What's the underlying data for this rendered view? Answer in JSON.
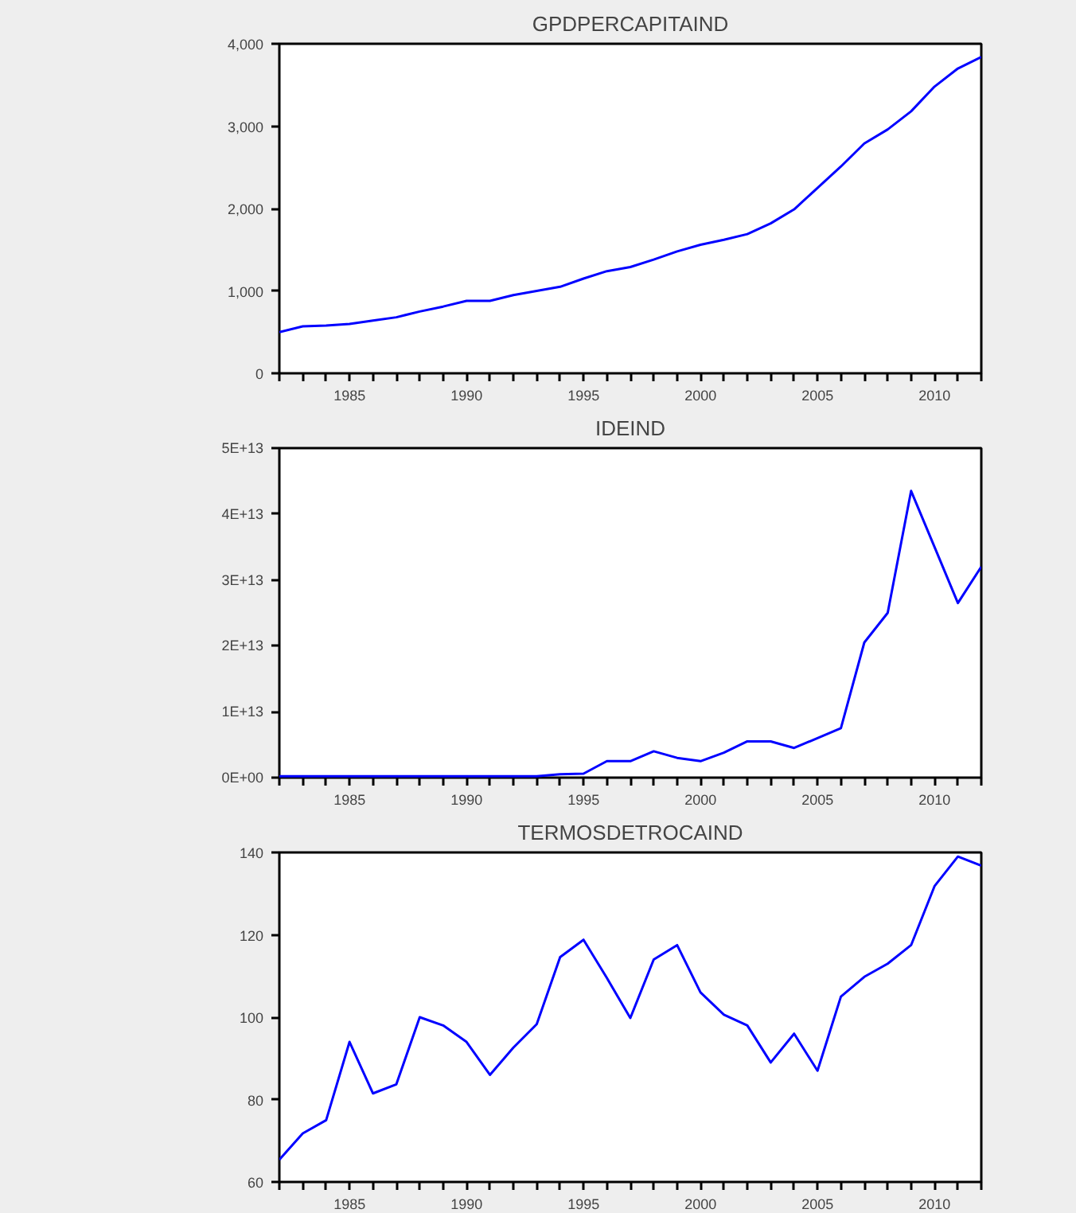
{
  "chart_data": [
    {
      "type": "line",
      "title": "GPDPERCAPITAIND",
      "x": [
        1982,
        1983,
        1984,
        1985,
        1986,
        1987,
        1988,
        1989,
        1990,
        1991,
        1992,
        1993,
        1994,
        1995,
        1996,
        1997,
        1998,
        1999,
        2000,
        2001,
        2002,
        2003,
        2004,
        2005,
        2006,
        2007,
        2008,
        2009,
        2010,
        2011,
        2012
      ],
      "series": [
        {
          "color": "#0000ff",
          "values": [
            500,
            570,
            580,
            600,
            640,
            680,
            750,
            810,
            880,
            880,
            950,
            1000,
            1050,
            1150,
            1240,
            1290,
            1380,
            1480,
            1560,
            1620,
            1690,
            1820,
            1990,
            2250,
            2510,
            2790,
            2960,
            3180,
            3480,
            3700,
            3840
          ]
        }
      ],
      "xlim": [
        1982,
        2012
      ],
      "xticks": [
        {
          "value": 1982,
          "label": null
        },
        {
          "value": 1983,
          "label": null
        },
        {
          "value": 1984,
          "label": null
        },
        1985,
        {
          "value": 1986,
          "label": null
        },
        {
          "value": 1987,
          "label": null
        },
        {
          "value": 1988,
          "label": null
        },
        {
          "value": 1989,
          "label": null
        },
        1990,
        {
          "value": 1991,
          "label": null
        },
        {
          "value": 1992,
          "label": null
        },
        {
          "value": 1993,
          "label": null
        },
        {
          "value": 1994,
          "label": null
        },
        1995,
        {
          "value": 1996,
          "label": null
        },
        {
          "value": 1997,
          "label": null
        },
        {
          "value": 1998,
          "label": null
        },
        {
          "value": 1999,
          "label": null
        },
        2000,
        {
          "value": 2001,
          "label": null
        },
        {
          "value": 2002,
          "label": null
        },
        {
          "value": 2003,
          "label": null
        },
        {
          "value": 2004,
          "label": null
        },
        2005,
        {
          "value": 2006,
          "label": null
        },
        {
          "value": 2007,
          "label": null
        },
        {
          "value": 2008,
          "label": null
        },
        {
          "value": 2009,
          "label": null
        },
        2010,
        {
          "value": 2011,
          "label": null
        },
        {
          "value": 2012,
          "label": null
        }
      ],
      "ylim": [
        0,
        4000
      ],
      "yticks": [
        0,
        {
          "value": 1000,
          "label": "1,000"
        },
        {
          "value": 2000,
          "label": "2,000"
        },
        {
          "value": 3000,
          "label": "3,000"
        },
        {
          "value": 4000,
          "label": "4,000"
        }
      ],
      "grid": false
    },
    {
      "type": "line",
      "title": "IDEIND",
      "x": [
        1982,
        1983,
        1984,
        1985,
        1986,
        1987,
        1988,
        1989,
        1990,
        1991,
        1992,
        1993,
        1994,
        1995,
        1996,
        1997,
        1998,
        1999,
        2000,
        2001,
        2002,
        2003,
        2004,
        2005,
        2006,
        2007,
        2008,
        2009,
        2010,
        2011,
        2012
      ],
      "series": [
        {
          "color": "#0000ff",
          "values": [
            200000000000.0,
            200000000000.0,
            200000000000.0,
            200000000000.0,
            200000000000.0,
            200000000000.0,
            200000000000.0,
            200000000000.0,
            200000000000.0,
            200000000000.0,
            200000000000.0,
            200000000000.0,
            500000000000.0,
            600000000000.0,
            2500000000000.0,
            2500000000000.0,
            4000000000000.0,
            3000000000000.0,
            2500000000000.0,
            3800000000000.0,
            5500000000000.0,
            5500000000000.0,
            4500000000000.0,
            6000000000000.0,
            7500000000000.0,
            20500000000000.0,
            25000000000000.0,
            43500000000000.0,
            35000000000000.0,
            26500000000000.0,
            32000000000000.0
          ]
        }
      ],
      "xlim": [
        1982,
        2012
      ],
      "xticks": [
        {
          "value": 1982,
          "label": null
        },
        {
          "value": 1983,
          "label": null
        },
        {
          "value": 1984,
          "label": null
        },
        1985,
        {
          "value": 1986,
          "label": null
        },
        {
          "value": 1987,
          "label": null
        },
        {
          "value": 1988,
          "label": null
        },
        {
          "value": 1989,
          "label": null
        },
        1990,
        {
          "value": 1991,
          "label": null
        },
        {
          "value": 1992,
          "label": null
        },
        {
          "value": 1993,
          "label": null
        },
        {
          "value": 1994,
          "label": null
        },
        1995,
        {
          "value": 1996,
          "label": null
        },
        {
          "value": 1997,
          "label": null
        },
        {
          "value": 1998,
          "label": null
        },
        {
          "value": 1999,
          "label": null
        },
        2000,
        {
          "value": 2001,
          "label": null
        },
        {
          "value": 2002,
          "label": null
        },
        {
          "value": 2003,
          "label": null
        },
        {
          "value": 2004,
          "label": null
        },
        2005,
        {
          "value": 2006,
          "label": null
        },
        {
          "value": 2007,
          "label": null
        },
        {
          "value": 2008,
          "label": null
        },
        {
          "value": 2009,
          "label": null
        },
        2010,
        {
          "value": 2011,
          "label": null
        },
        {
          "value": 2012,
          "label": null
        }
      ],
      "ylim": [
        0,
        50000000000000.0
      ],
      "yticks": [
        {
          "value": 0,
          "label": "0E+00"
        },
        {
          "value": 10000000000000.0,
          "label": "1E+13"
        },
        {
          "value": 20000000000000.0,
          "label": "2E+13"
        },
        {
          "value": 30000000000000.0,
          "label": "3E+13"
        },
        {
          "value": 40000000000000.0,
          "label": "4E+13"
        },
        {
          "value": 50000000000000.0,
          "label": "5E+13"
        }
      ],
      "grid": false
    },
    {
      "type": "line",
      "title": "TERMOSDETROCAIND",
      "x": [
        1982,
        1983,
        1984,
        1985,
        1986,
        1987,
        1988,
        1989,
        1990,
        1991,
        1992,
        1993,
        1994,
        1995,
        1996,
        1997,
        1998,
        1999,
        2000,
        2001,
        2002,
        2003,
        2004,
        2005,
        2006,
        2007,
        2008,
        2009,
        2010,
        2011,
        2012
      ],
      "series": [
        {
          "color": "#0000ff",
          "values": [
            65.4,
            71.8,
            75,
            94,
            81.5,
            83.7,
            100,
            98,
            94,
            86,
            92.6,
            98.3,
            114.6,
            118.8,
            109.5,
            99.8,
            114,
            117.5,
            106,
            100.6,
            98,
            89,
            96,
            87,
            105,
            109.8,
            113,
            117.5,
            131.8,
            139,
            136.8
          ]
        }
      ],
      "xlim": [
        1982,
        2012
      ],
      "xticks": [
        {
          "value": 1982,
          "label": null
        },
        {
          "value": 1983,
          "label": null
        },
        {
          "value": 1984,
          "label": null
        },
        1985,
        {
          "value": 1986,
          "label": null
        },
        {
          "value": 1987,
          "label": null
        },
        {
          "value": 1988,
          "label": null
        },
        {
          "value": 1989,
          "label": null
        },
        1990,
        {
          "value": 1991,
          "label": null
        },
        {
          "value": 1992,
          "label": null
        },
        {
          "value": 1993,
          "label": null
        },
        {
          "value": 1994,
          "label": null
        },
        1995,
        {
          "value": 1996,
          "label": null
        },
        {
          "value": 1997,
          "label": null
        },
        {
          "value": 1998,
          "label": null
        },
        {
          "value": 1999,
          "label": null
        },
        2000,
        {
          "value": 2001,
          "label": null
        },
        {
          "value": 2002,
          "label": null
        },
        {
          "value": 2003,
          "label": null
        },
        {
          "value": 2004,
          "label": null
        },
        2005,
        {
          "value": 2006,
          "label": null
        },
        {
          "value": 2007,
          "label": null
        },
        {
          "value": 2008,
          "label": null
        },
        {
          "value": 2009,
          "label": null
        },
        2010,
        {
          "value": 2011,
          "label": null
        },
        {
          "value": 2012,
          "label": null
        }
      ],
      "ylim": [
        60,
        140
      ],
      "yticks": [
        60,
        80,
        100,
        120,
        140
      ],
      "grid": false
    }
  ]
}
